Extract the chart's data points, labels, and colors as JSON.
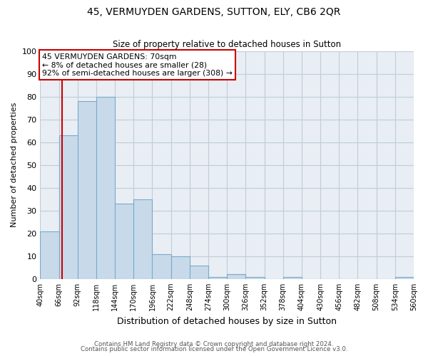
{
  "title": "45, VERMUYDEN GARDENS, SUTTON, ELY, CB6 2QR",
  "subtitle": "Size of property relative to detached houses in Sutton",
  "xlabel": "Distribution of detached houses by size in Sutton",
  "ylabel": "Number of detached properties",
  "bin_edges": [
    40,
    66,
    92,
    118,
    144,
    170,
    196,
    222,
    248,
    274,
    300,
    326,
    352,
    378,
    404,
    430,
    456,
    482,
    508,
    534,
    560
  ],
  "bar_heights": [
    21,
    63,
    78,
    80,
    33,
    35,
    11,
    10,
    6,
    1,
    2,
    1,
    0,
    1,
    0,
    0,
    0,
    0,
    0,
    1
  ],
  "bar_color": "#c8daea",
  "bar_edgecolor": "#7baac8",
  "property_line_x": 70,
  "property_line_color": "#cc0000",
  "ylim": [
    0,
    100
  ],
  "yticks": [
    0,
    10,
    20,
    30,
    40,
    50,
    60,
    70,
    80,
    90,
    100
  ],
  "annotation_box_text": "45 VERMUYDEN GARDENS: 70sqm\n← 8% of detached houses are smaller (28)\n92% of semi-detached houses are larger (308) →",
  "annotation_box_color": "#cc0000",
  "annotation_box_facecolor": "white",
  "footer_line1": "Contains HM Land Registry data © Crown copyright and database right 2024.",
  "footer_line2": "Contains public sector information licensed under the Open Government Licence v3.0.",
  "background_color": "#e8eef4",
  "grid_color": "#c0ccd8",
  "tick_labels": [
    "40sqm",
    "66sqm",
    "92sqm",
    "118sqm",
    "144sqm",
    "170sqm",
    "196sqm",
    "222sqm",
    "248sqm",
    "274sqm",
    "300sqm",
    "326sqm",
    "352sqm",
    "378sqm",
    "404sqm",
    "430sqm",
    "456sqm",
    "482sqm",
    "508sqm",
    "534sqm",
    "560sqm"
  ]
}
